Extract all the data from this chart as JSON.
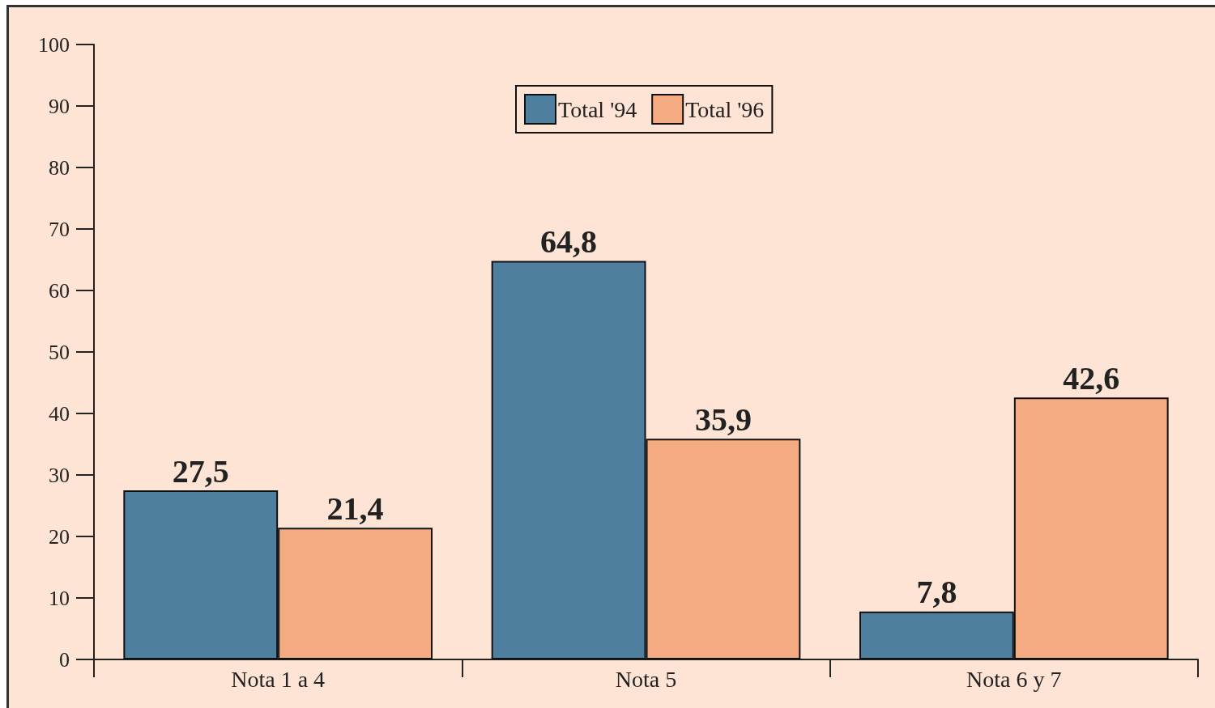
{
  "chart_data": {
    "type": "bar",
    "categories": [
      "Nota 1 a 4",
      "Nota 5",
      "Nota 6 y 7"
    ],
    "series": [
      {
        "name": "Total '94",
        "color": "#4f7f9f",
        "values": [
          27.5,
          64.8,
          7.8
        ],
        "value_labels": [
          "27,5",
          "64,8",
          "7,8"
        ]
      },
      {
        "name": "Total '96",
        "color": "#f5ab82",
        "values": [
          21.4,
          35.9,
          42.6
        ],
        "value_labels": [
          "21,4",
          "35,9",
          "42,6"
        ]
      }
    ],
    "ylim": [
      0,
      100
    ],
    "yticks": [
      0,
      10,
      20,
      30,
      40,
      50,
      60,
      70,
      80,
      90,
      100
    ],
    "grid": false,
    "legend": "top"
  }
}
